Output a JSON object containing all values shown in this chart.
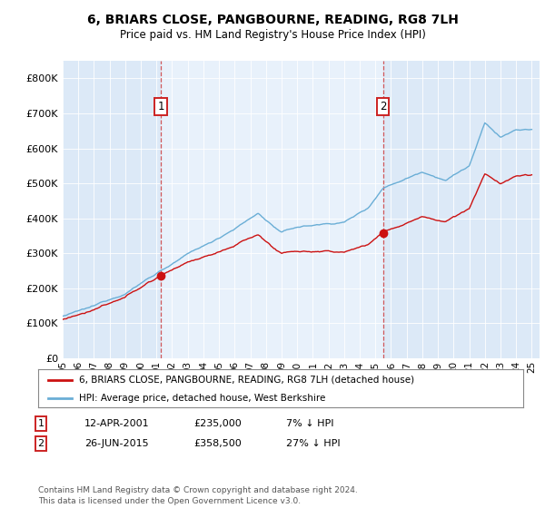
{
  "title": "6, BRIARS CLOSE, PANGBOURNE, READING, RG8 7LH",
  "subtitle": "Price paid vs. HM Land Registry's House Price Index (HPI)",
  "background_color": "#ffffff",
  "plot_bg_color": "#dce9f7",
  "highlight_color": "#e8f1fb",
  "hpi_color": "#6aaed6",
  "price_color": "#cc1111",
  "ylim": [
    0,
    850000
  ],
  "yticks": [
    0,
    100000,
    200000,
    300000,
    400000,
    500000,
    600000,
    700000,
    800000
  ],
  "ytick_labels": [
    "£0",
    "£100K",
    "£200K",
    "£300K",
    "£400K",
    "£500K",
    "£600K",
    "£700K",
    "£800K"
  ],
  "x_start_year": 1995,
  "x_end_year": 2025,
  "ann1_year": 2001.28,
  "ann1_value": 235000,
  "ann2_year": 2015.48,
  "ann2_value": 358500,
  "legend_line1": "6, BRIARS CLOSE, PANGBOURNE, READING, RG8 7LH (detached house)",
  "legend_line2": "HPI: Average price, detached house, West Berkshire",
  "table_row1": [
    "1",
    "12-APR-2001",
    "£235,000",
    "7% ↓ HPI"
  ],
  "table_row2": [
    "2",
    "26-JUN-2015",
    "£358,500",
    "27% ↓ HPI"
  ],
  "footer": "Contains HM Land Registry data © Crown copyright and database right 2024.\nThis data is licensed under the Open Government Licence v3.0."
}
